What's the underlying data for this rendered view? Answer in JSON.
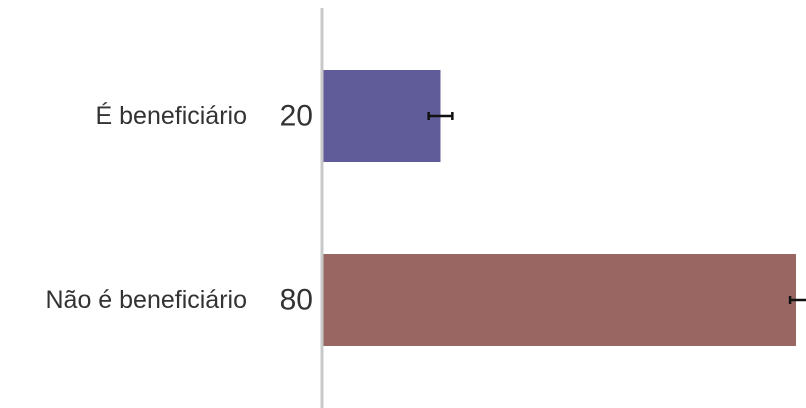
{
  "chart_data": {
    "type": "bar",
    "orientation": "horizontal",
    "categories": [
      "É beneficiário",
      "Não é beneficiário"
    ],
    "values": [
      20,
      80
    ],
    "error_bars": [
      [
        18,
        22
      ],
      [
        79,
        82
      ]
    ],
    "value_labels": [
      "20",
      "80"
    ],
    "xlim": [
      0,
      80
    ],
    "colors": [
      "#5f5c99",
      "#996662"
    ],
    "axis_color": "#c8c8c8",
    "error_color": "#111111",
    "grid": false,
    "legend": "none"
  }
}
